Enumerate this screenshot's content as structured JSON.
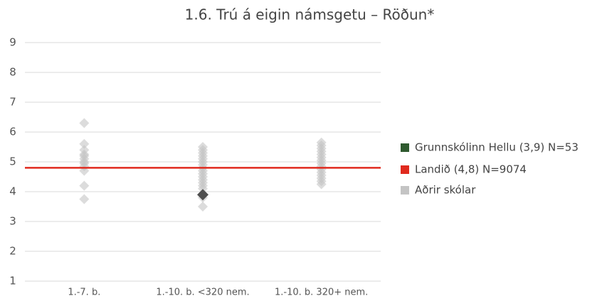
{
  "chart_data": {
    "type": "strip",
    "title": "1.6. Trú á eigin námsgetu – Röðun*",
    "categories": [
      "1.-7. b.",
      "1.-10. b. <320 nem.",
      "1.-10. b. 320+ nem."
    ],
    "ylim": [
      1,
      9
    ],
    "yticks": [
      1,
      2,
      3,
      4,
      5,
      6,
      7,
      8,
      9
    ],
    "grid": true,
    "legend": "right",
    "series": [
      {
        "name": "Grunnskólinn Hellu (3,9) N=53",
        "color": "#2f5a2f",
        "marker_color": "#505050",
        "values": [
          null,
          3.9,
          null
        ]
      },
      {
        "name": "Landið (4,8) N=9074",
        "color": "#e02a1e",
        "value": 4.8
      },
      {
        "name": "Aðrir skólar",
        "color": "#c4c4c4",
        "values": [
          [
            6.3,
            5.6,
            5.4,
            5.25,
            5.2,
            5.1,
            5.0,
            4.95,
            4.85,
            4.7,
            4.2,
            3.75
          ],
          [
            5.5,
            5.4,
            5.3,
            5.2,
            5.1,
            5.0,
            4.9,
            4.8,
            4.7,
            4.6,
            4.5,
            4.4,
            4.3,
            4.2,
            4.1,
            3.8,
            3.5
          ],
          [
            5.65,
            5.55,
            5.45,
            5.35,
            5.25,
            5.15,
            5.05,
            4.95,
            4.85,
            4.75,
            4.65,
            4.55,
            4.45,
            4.35,
            4.25
          ]
        ]
      }
    ]
  }
}
